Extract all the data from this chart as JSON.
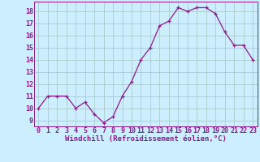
{
  "x": [
    0,
    1,
    2,
    3,
    4,
    5,
    6,
    7,
    8,
    9,
    10,
    11,
    12,
    13,
    14,
    15,
    16,
    17,
    18,
    19,
    20,
    21,
    22,
    23
  ],
  "y": [
    10,
    11,
    11,
    11,
    10,
    10.5,
    9.5,
    8.8,
    9.3,
    11,
    12.2,
    14,
    15,
    16.8,
    17.2,
    18.3,
    18,
    18.3,
    18.3,
    17.8,
    16.3,
    15.2,
    15.2,
    14
  ],
  "line_color": "#8b1a8b",
  "marker": "+",
  "bg_color": "#cceeff",
  "grid_color": "#aacccc",
  "xlabel": "Windchill (Refroidissement éolien,°C)",
  "xlabel_fontsize": 6.5,
  "yticks": [
    9,
    10,
    11,
    12,
    13,
    14,
    15,
    16,
    17,
    18
  ],
  "xticks": [
    0,
    1,
    2,
    3,
    4,
    5,
    6,
    7,
    8,
    9,
    10,
    11,
    12,
    13,
    14,
    15,
    16,
    17,
    18,
    19,
    20,
    21,
    22,
    23
  ],
  "ylim": [
    8.5,
    18.8
  ],
  "xlim": [
    -0.5,
    23.5
  ],
  "tick_fontsize": 6.0,
  "tick_color": "#8b1a8b",
  "axis_label_color": "#8b1a8b",
  "spine_color": "#8b1a8b",
  "linewidth": 0.9,
  "markersize": 3.0
}
